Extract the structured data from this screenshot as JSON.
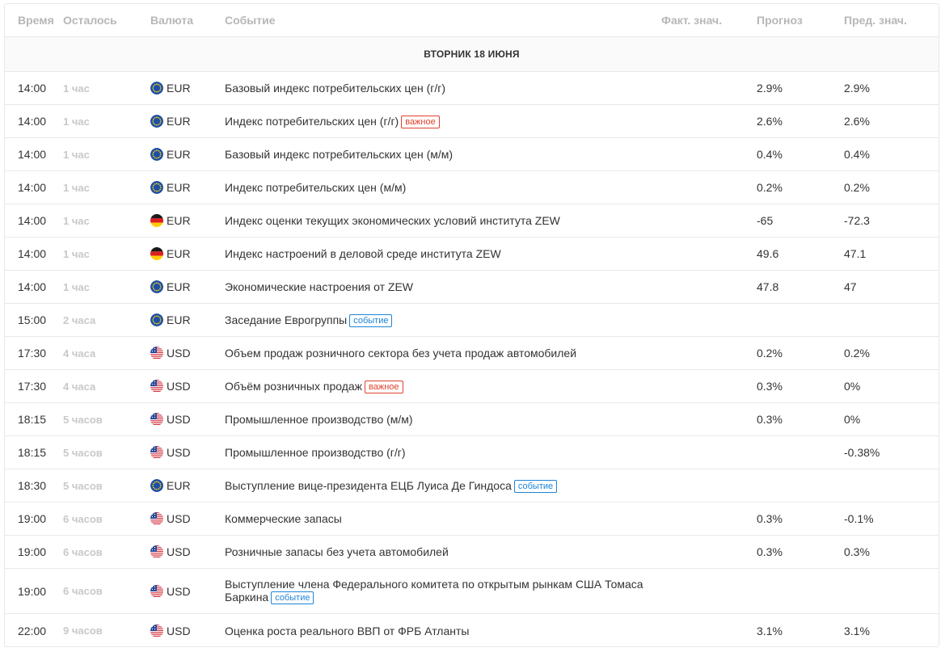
{
  "header": {
    "time": "Время",
    "left": "Осталось",
    "currency": "Валюта",
    "event": "Событие",
    "actual": "Факт. знач.",
    "forecast": "Прогноз",
    "previous": "Пред. знач."
  },
  "day_label": "ВТОРНИК 18 ИЮНЯ",
  "colors": {
    "important": "#e0412c",
    "event": "#1f84d8",
    "muted": "#c8c8c8"
  },
  "rows": [
    {
      "time": "14:00",
      "left": "1 час",
      "flag": "eu-flag-icon",
      "currency": "EUR",
      "event": "Базовый индекс потребительских цен (г/г)",
      "badge": "",
      "actual": "",
      "forecast": "2.9%",
      "previous": "2.9%"
    },
    {
      "time": "14:00",
      "left": "1 час",
      "flag": "eu-flag-icon",
      "currency": "EUR",
      "event": "Индекс потребительских цен (г/г)",
      "badge": "важное",
      "badge_type": "imp",
      "actual": "",
      "forecast": "2.6%",
      "previous": "2.6%"
    },
    {
      "time": "14:00",
      "left": "1 час",
      "flag": "eu-flag-icon",
      "currency": "EUR",
      "event": "Базовый индекс потребительских цен (м/м)",
      "badge": "",
      "actual": "",
      "forecast": "0.4%",
      "previous": "0.4%"
    },
    {
      "time": "14:00",
      "left": "1 час",
      "flag": "eu-flag-icon",
      "currency": "EUR",
      "event": "Индекс потребительских цен (м/м)",
      "badge": "",
      "actual": "",
      "forecast": "0.2%",
      "previous": "0.2%"
    },
    {
      "time": "14:00",
      "left": "1 час",
      "flag": "de-flag-icon",
      "currency": "EUR",
      "event": "Индекс оценки текущих экономических условий института ZEW",
      "badge": "",
      "actual": "",
      "forecast": "-65",
      "previous": "-72.3"
    },
    {
      "time": "14:00",
      "left": "1 час",
      "flag": "de-flag-icon",
      "currency": "EUR",
      "event": "Индекс настроений в деловой среде института ZEW",
      "badge": "",
      "actual": "",
      "forecast": "49.6",
      "previous": "47.1"
    },
    {
      "time": "14:00",
      "left": "1 час",
      "flag": "eu-flag-icon",
      "currency": "EUR",
      "event": "Экономические настроения от ZEW",
      "badge": "",
      "actual": "",
      "forecast": "47.8",
      "previous": "47"
    },
    {
      "time": "15:00",
      "left": "2 часа",
      "flag": "eu-flag-icon",
      "currency": "EUR",
      "event": "Заседание Еврогруппы",
      "badge": "событие",
      "badge_type": "ev",
      "actual": "",
      "forecast": "",
      "previous": ""
    },
    {
      "time": "17:30",
      "left": "4 часа",
      "flag": "us-flag-icon",
      "currency": "USD",
      "event": "Объем продаж розничного сектора без учета продаж автомобилей",
      "badge": "",
      "actual": "",
      "forecast": "0.2%",
      "previous": "0.2%"
    },
    {
      "time": "17:30",
      "left": "4 часа",
      "flag": "us-flag-icon",
      "currency": "USD",
      "event": "Объём розничных продаж",
      "badge": "важное",
      "badge_type": "imp",
      "actual": "",
      "forecast": "0.3%",
      "previous": "0%"
    },
    {
      "time": "18:15",
      "left": "5 часов",
      "flag": "us-flag-icon",
      "currency": "USD",
      "event": "Промышленное производство (м/м)",
      "badge": "",
      "actual": "",
      "forecast": "0.3%",
      "previous": "0%"
    },
    {
      "time": "18:15",
      "left": "5 часов",
      "flag": "us-flag-icon",
      "currency": "USD",
      "event": "Промышленное производство (г/г)",
      "badge": "",
      "actual": "",
      "forecast": "",
      "previous": "-0.38%"
    },
    {
      "time": "18:30",
      "left": "5 часов",
      "flag": "eu-flag-icon",
      "currency": "EUR",
      "event": "Выступление вице-президента ЕЦБ Луиса Де Гиндоса",
      "badge": "событие",
      "badge_type": "ev",
      "actual": "",
      "forecast": "",
      "previous": ""
    },
    {
      "time": "19:00",
      "left": "6 часов",
      "flag": "us-flag-icon",
      "currency": "USD",
      "event": "Коммерческие запасы",
      "badge": "",
      "actual": "",
      "forecast": "0.3%",
      "previous": "-0.1%"
    },
    {
      "time": "19:00",
      "left": "6 часов",
      "flag": "us-flag-icon",
      "currency": "USD",
      "event": "Розничные запасы без учета автомобилей",
      "badge": "",
      "actual": "",
      "forecast": "0.3%",
      "previous": "0.3%"
    },
    {
      "time": "19:00",
      "left": "6 часов",
      "flag": "us-flag-icon",
      "currency": "USD",
      "event": "Выступление члена Федерального комитета по открытым рынкам США Томаса Баркина",
      "badge": "событие",
      "badge_type": "ev",
      "actual": "",
      "forecast": "",
      "previous": "",
      "tall": true
    },
    {
      "time": "22:00",
      "left": "9 часов",
      "flag": "us-flag-icon",
      "currency": "USD",
      "event": "Оценка роста реального ВВП от ФРБ Атланты",
      "badge": "",
      "actual": "",
      "forecast": "3.1%",
      "previous": "3.1%"
    }
  ]
}
